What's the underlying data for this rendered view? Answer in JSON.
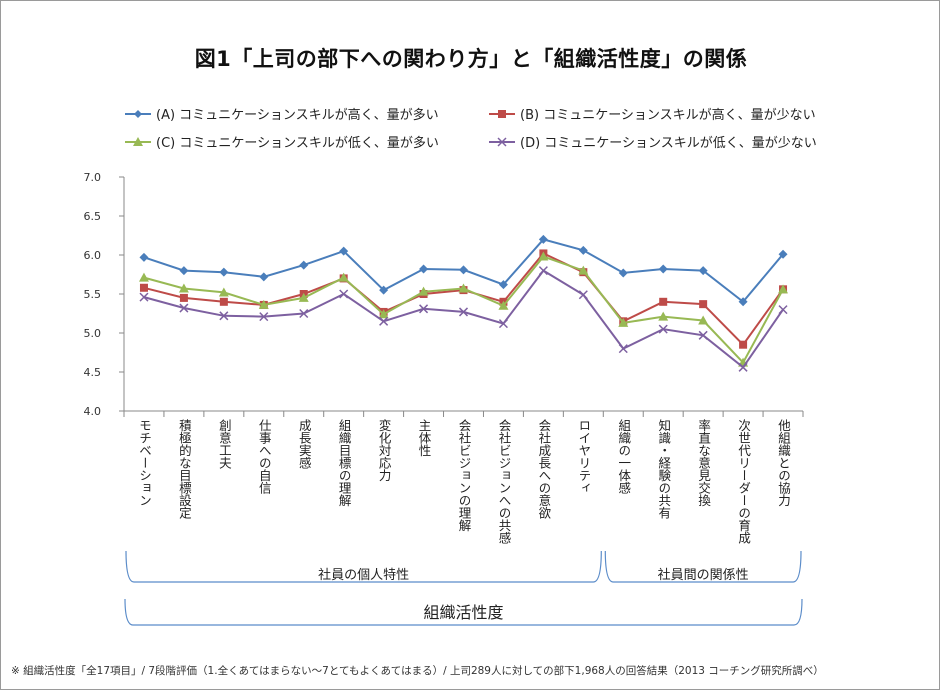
{
  "chart_data": {
    "type": "line",
    "title": "図1「上司の部下への関わり方」と「組織活性度」の関係",
    "categories": [
      "モチベーション",
      "積極的な目標設定",
      "創意工夫",
      "仕事への自信",
      "成長実感",
      "組織目標の理解",
      "変化対応力",
      "主体性",
      "会社ビジョンの理解",
      "会社ビジョンへの共感",
      "会社成長への意欲",
      "ロイヤリティ",
      "組織の一体感",
      "知識・経験の共有",
      "率直な意見交換",
      "次世代リーダーの育成",
      "他組織との協力"
    ],
    "ylim": [
      4.0,
      7.0
    ],
    "yticks": [
      "7.0",
      "6.5",
      "6.0",
      "5.5",
      "5.0",
      "4.5",
      "4.0"
    ],
    "grid": false,
    "legend_position": "top",
    "series": [
      {
        "name": "(A) コミュニケーションスキルが高く、量が多い",
        "color": "#4a7ebb",
        "marker": "diamond",
        "values": [
          5.97,
          5.8,
          5.78,
          5.72,
          5.87,
          6.05,
          5.55,
          5.82,
          5.81,
          5.62,
          6.2,
          6.06,
          5.77,
          5.82,
          5.8,
          5.4,
          6.01
        ]
      },
      {
        "name": "(B) コミュニケーションスキルが高く、量が少ない",
        "color": "#be4b48",
        "marker": "square",
        "values": [
          5.58,
          5.45,
          5.4,
          5.36,
          5.5,
          5.7,
          5.27,
          5.5,
          5.55,
          5.4,
          6.02,
          5.78,
          5.15,
          5.4,
          5.37,
          4.85,
          5.56
        ]
      },
      {
        "name": "(C) コミュニケーションスキルが低く、量が多い",
        "color": "#98b954",
        "marker": "triangle",
        "values": [
          5.71,
          5.57,
          5.52,
          5.36,
          5.45,
          5.71,
          5.24,
          5.53,
          5.57,
          5.35,
          5.98,
          5.8,
          5.13,
          5.21,
          5.16,
          4.62,
          5.56
        ]
      },
      {
        "name": "(D) コミュニケーションスキルが低く、量が少ない",
        "color": "#7d60a0",
        "marker": "x",
        "values": [
          5.46,
          5.32,
          5.22,
          5.21,
          5.25,
          5.5,
          5.15,
          5.31,
          5.27,
          5.12,
          5.8,
          5.49,
          4.8,
          5.05,
          4.97,
          4.56,
          5.3
        ]
      }
    ],
    "groups": [
      {
        "label": "社員の個人特性",
        "from": 0,
        "to": 11
      },
      {
        "label": "社員間の関係性",
        "from": 12,
        "to": 16
      }
    ],
    "overall_group": "組織活性度"
  },
  "footnote": "※ 組織活性度「全17項目」/ 7段階評価（1.全くあてはまらない〜7とてもよくあてはまる）/ 上司289人に対しての部下1,968人の回答結果（2013 コーチング研究所調べ）"
}
